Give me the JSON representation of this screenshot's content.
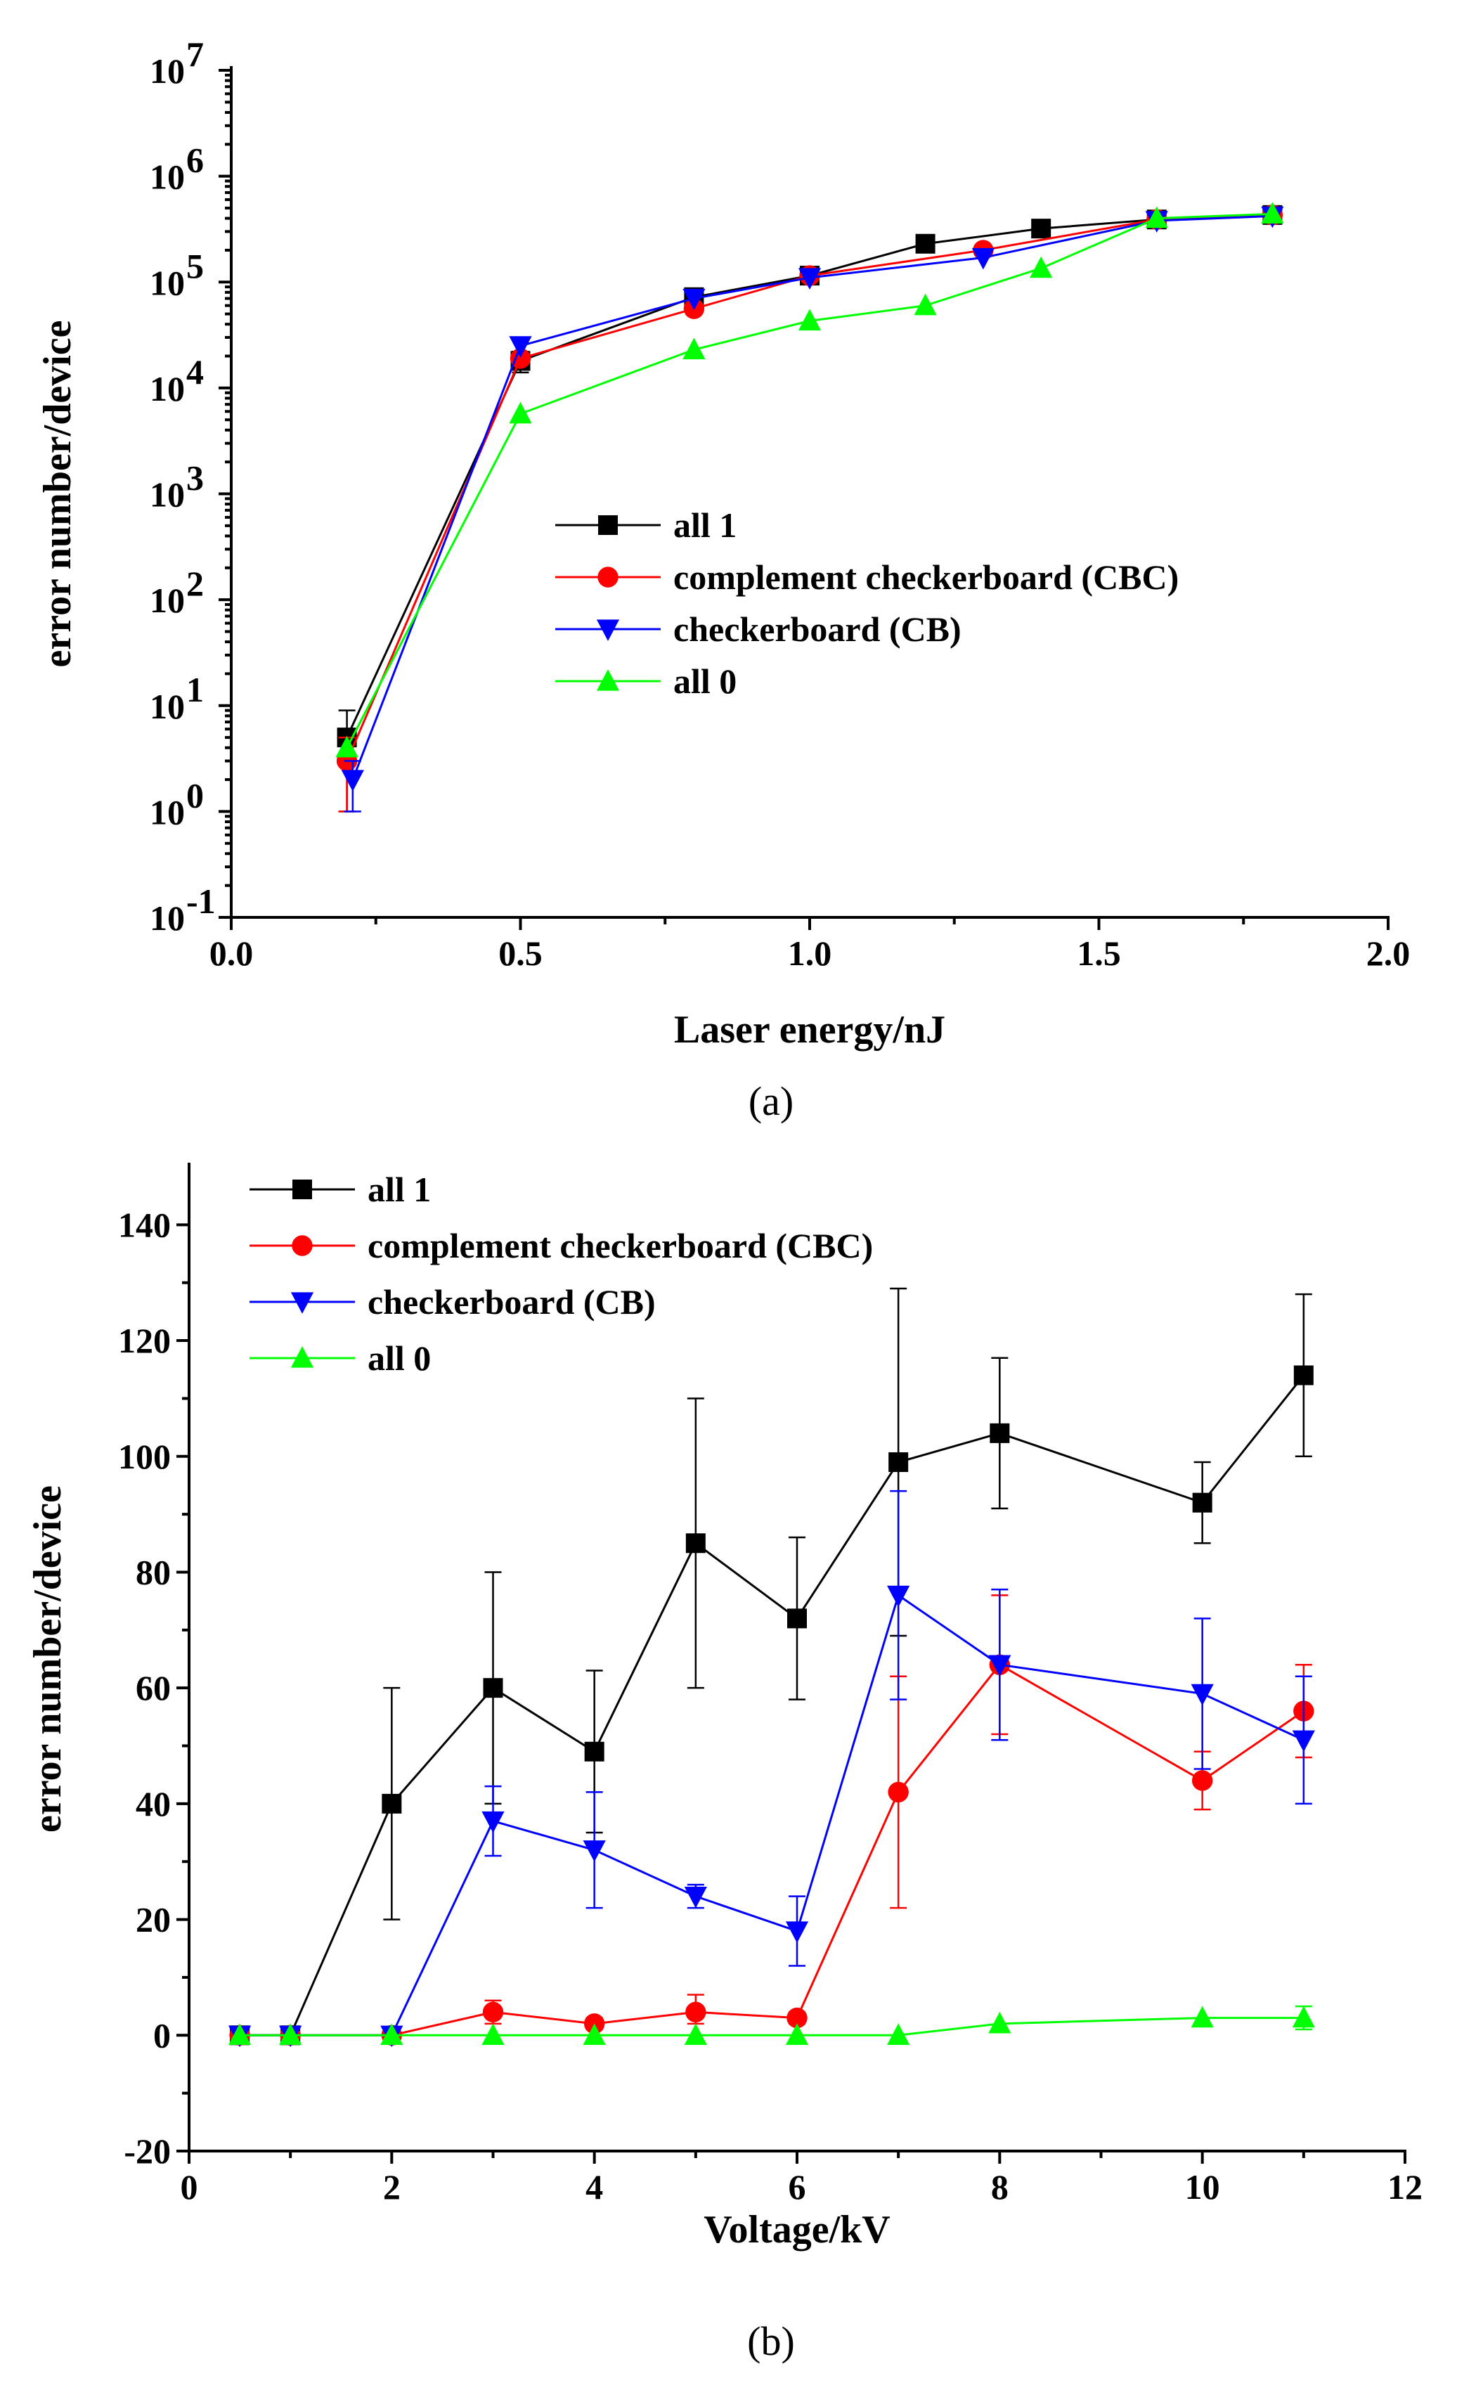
{
  "chart_data": [
    {
      "type": "line",
      "panel_label": "(a)",
      "title": "",
      "xlabel": "Laser energy/nJ",
      "ylabel": "error number/device",
      "xlim": [
        0.0,
        2.0
      ],
      "ylim": [
        0.1,
        10000000
      ],
      "yscale": "log",
      "x_ticks": [
        0.0,
        0.5,
        1.0,
        1.5,
        2.0
      ],
      "x_tick_labels": [
        "0.0",
        "0.5",
        "1.0",
        "1.5",
        "2.0"
      ],
      "y_ticks": [
        {
          "value": 0.1,
          "base": "10",
          "exp": "-1"
        },
        {
          "value": 1,
          "base": "10",
          "exp": "0"
        },
        {
          "value": 10,
          "base": "10",
          "exp": "1"
        },
        {
          "value": 100,
          "base": "10",
          "exp": "2"
        },
        {
          "value": 1000,
          "base": "10",
          "exp": "3"
        },
        {
          "value": 10000,
          "base": "10",
          "exp": "4"
        },
        {
          "value": 100000,
          "base": "10",
          "exp": "5"
        },
        {
          "value": 1000000,
          "base": "10",
          "exp": "6"
        },
        {
          "value": 10000000,
          "base": "10",
          "exp": "7"
        }
      ],
      "legend_position": "center-left",
      "series": [
        {
          "name": "all 1",
          "color": "#000000",
          "marker": "square",
          "x": [
            0.2,
            0.5,
            0.8,
            1.0,
            1.2,
            1.4,
            1.6,
            1.8
          ],
          "values": [
            5,
            18000,
            72000,
            115000,
            230000,
            320000,
            390000,
            430000
          ],
          "err_low": [
            1,
            14000,
            null,
            null,
            null,
            null,
            null,
            null
          ],
          "err_high": [
            9,
            22000,
            null,
            null,
            null,
            null,
            null,
            null
          ]
        },
        {
          "name": "complement checkerboard (CBC)",
          "color": "#ff0000",
          "marker": "circle",
          "x": [
            0.2,
            0.5,
            0.8,
            1.0,
            1.3,
            1.6,
            1.8
          ],
          "values": [
            3,
            19000,
            56000,
            115000,
            200000,
            390000,
            430000
          ],
          "err_low": [
            1,
            null,
            null,
            null,
            null,
            null,
            null
          ],
          "err_high": [
            5,
            null,
            null,
            null,
            null,
            null,
            null
          ]
        },
        {
          "name": "checkerboard (CB)",
          "color": "#0000ff",
          "marker": "triangle-down",
          "x": [
            0.21,
            0.5,
            0.8,
            1.0,
            1.3,
            1.6,
            1.8
          ],
          "values": [
            2,
            25000,
            70000,
            110000,
            170000,
            380000,
            420000
          ],
          "err_low": [
            1,
            null,
            null,
            null,
            null,
            null,
            null
          ],
          "err_high": [
            3,
            null,
            null,
            null,
            null,
            null,
            null
          ]
        },
        {
          "name": "all 0",
          "color": "#00ff00",
          "marker": "triangle-up",
          "x": [
            0.2,
            0.5,
            0.8,
            1.0,
            1.2,
            1.4,
            1.6,
            1.8
          ],
          "values": [
            4,
            5700,
            23000,
            43000,
            60000,
            135000,
            400000,
            440000
          ],
          "err_low": [
            null,
            null,
            null,
            null,
            null,
            null,
            null,
            null
          ],
          "err_high": [
            null,
            null,
            null,
            null,
            null,
            null,
            null,
            null
          ]
        }
      ]
    },
    {
      "type": "line",
      "panel_label": "(b)",
      "title": "",
      "xlabel": "Voltage/kV",
      "ylabel": "error number/device",
      "xlim": [
        0,
        12
      ],
      "ylim": [
        -20,
        150
      ],
      "yscale": "linear",
      "x_ticks": [
        0,
        2,
        4,
        6,
        8,
        10,
        12
      ],
      "x_tick_labels": [
        "0",
        "2",
        "4",
        "6",
        "8",
        "10",
        "12"
      ],
      "y_ticks": [
        -20,
        0,
        20,
        40,
        60,
        80,
        100,
        120,
        140
      ],
      "y_tick_labels": [
        "-20",
        "0",
        "20",
        "40",
        "60",
        "80",
        "100",
        "120",
        "140"
      ],
      "legend_position": "top-left",
      "series": [
        {
          "name": "all 1",
          "color": "#000000",
          "marker": "square",
          "x": [
            0.5,
            1,
            2,
            3,
            4,
            5,
            6,
            7,
            8,
            10,
            11
          ],
          "values": [
            0,
            0,
            40,
            60,
            49,
            85,
            72,
            99,
            104,
            92,
            114
          ],
          "err_low": [
            null,
            null,
            20,
            40,
            35,
            60,
            58,
            69,
            91,
            85,
            100
          ],
          "err_high": [
            null,
            null,
            60,
            80,
            63,
            110,
            86,
            129,
            117,
            99,
            128
          ]
        },
        {
          "name": "complement checkerboard (CBC)",
          "color": "#ff0000",
          "marker": "circle",
          "x": [
            0.5,
            1,
            2,
            3,
            4,
            5,
            6,
            7,
            8,
            10,
            11
          ],
          "values": [
            0,
            0,
            0,
            4,
            2,
            4,
            3,
            42,
            64,
            44,
            56
          ],
          "err_low": [
            null,
            null,
            null,
            2,
            1,
            2,
            2,
            22,
            52,
            39,
            48
          ],
          "err_high": [
            null,
            null,
            null,
            6,
            3,
            7,
            4,
            62,
            76,
            49,
            64
          ]
        },
        {
          "name": " checkerboard (CB)",
          "color": "#0000ff",
          "marker": "triangle-down",
          "x": [
            0.5,
            1,
            2,
            3,
            4,
            5,
            6,
            7,
            8,
            10,
            11
          ],
          "values": [
            0,
            0,
            0,
            37,
            32,
            24,
            18,
            76,
            64,
            59,
            51
          ],
          "err_low": [
            null,
            null,
            null,
            31,
            22,
            22,
            12,
            58,
            51,
            46,
            40
          ],
          "err_high": [
            null,
            null,
            null,
            43,
            42,
            26,
            24,
            94,
            77,
            72,
            62
          ]
        },
        {
          "name": "all 0",
          "color": "#00ff00",
          "marker": "triangle-up",
          "x": [
            0.5,
            1,
            2,
            3,
            4,
            5,
            6,
            7,
            8,
            10,
            11
          ],
          "values": [
            0,
            0,
            0,
            0,
            0,
            0,
            0,
            0,
            2,
            3,
            3
          ],
          "err_low": [
            null,
            null,
            null,
            null,
            null,
            null,
            null,
            null,
            null,
            null,
            1
          ],
          "err_high": [
            null,
            null,
            null,
            null,
            null,
            null,
            null,
            null,
            null,
            null,
            5
          ]
        }
      ]
    }
  ]
}
